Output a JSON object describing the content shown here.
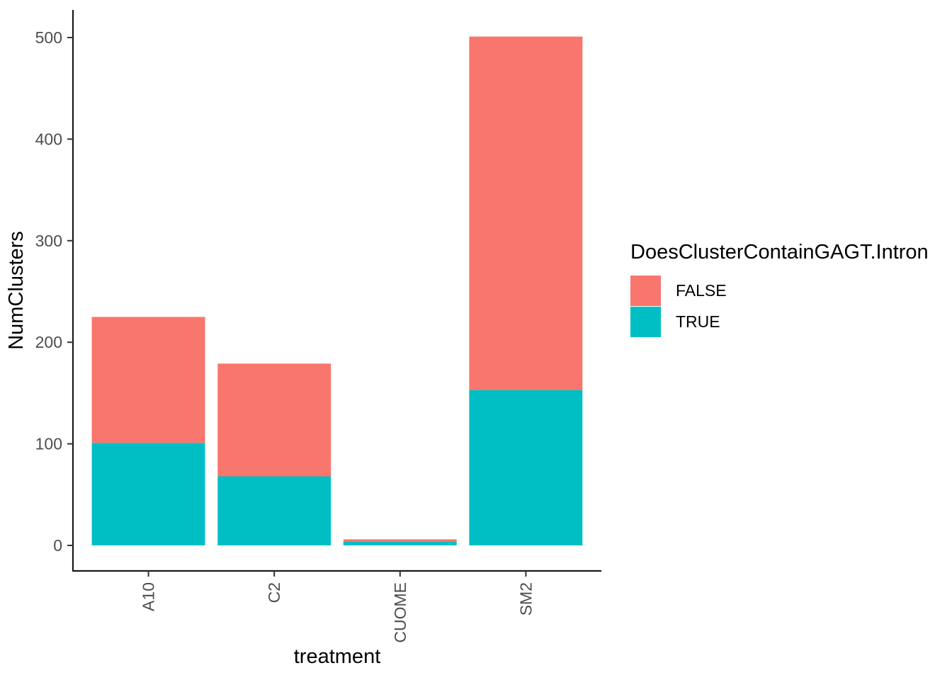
{
  "chart_data": {
    "type": "bar",
    "stacked": true,
    "orientation": "vertical",
    "title": "",
    "xlabel": "treatment",
    "ylabel": "NumClusters",
    "categories": [
      "A10",
      "C2",
      "CUOME",
      "SM2"
    ],
    "series": [
      {
        "name": "FALSE",
        "color": "#F8766D",
        "values": [
          124,
          111,
          2,
          348
        ]
      },
      {
        "name": "TRUE",
        "color": "#00BFC4",
        "values": [
          101,
          68,
          4,
          153
        ]
      }
    ],
    "stack_order_bottom_to_top": [
      "TRUE",
      "FALSE"
    ],
    "totals": [
      225,
      179,
      6,
      501
    ],
    "ylim": [
      0,
      500
    ],
    "yticks": [
      0,
      100,
      200,
      300,
      400,
      500
    ],
    "grid": false,
    "x_tick_rotation": 90,
    "legend": {
      "title": "DoesClusterContainGAGT.Intron",
      "position": "right",
      "entries": [
        {
          "label": "FALSE",
          "color": "#F8766D"
        },
        {
          "label": "TRUE",
          "color": "#00BFC4"
        }
      ]
    },
    "colors": {
      "axis_line": "#1a1a1a",
      "tick_mark": "#333333",
      "tick_label": "#4D4D4D",
      "axis_title": "#000000",
      "background": "#ffffff"
    }
  }
}
